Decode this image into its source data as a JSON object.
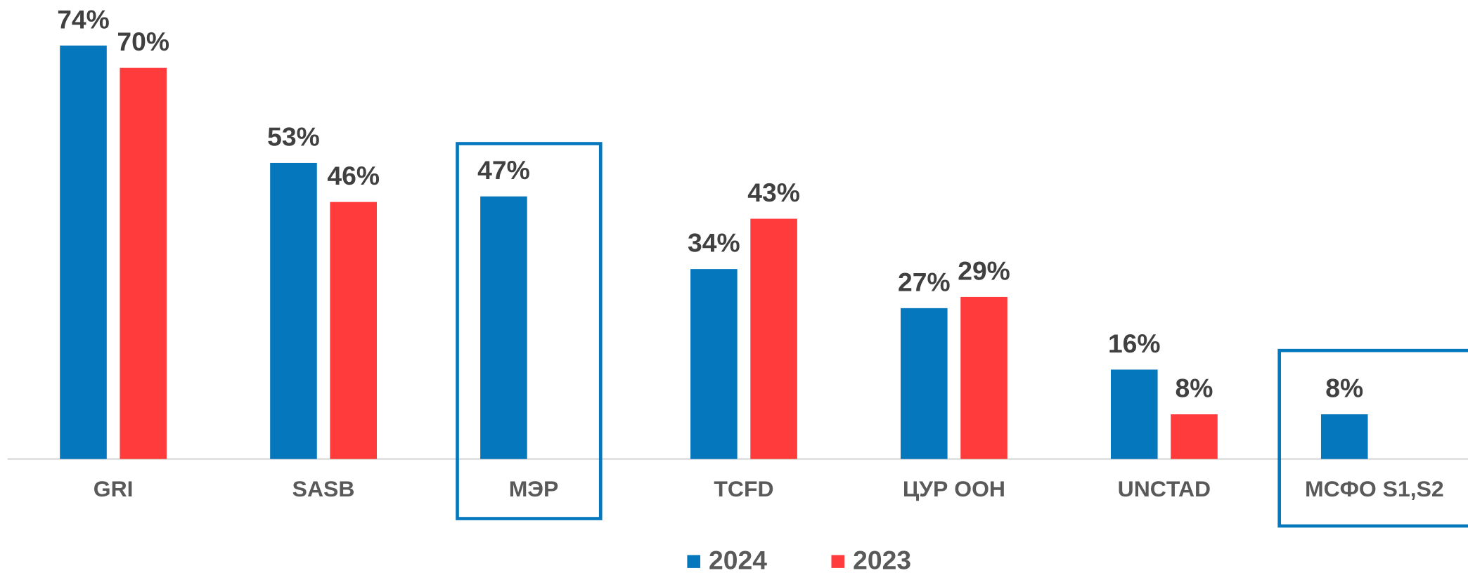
{
  "chart_data": {
    "type": "bar",
    "categories": [
      "GRI",
      "SASB",
      "МЭР",
      "TCFD",
      "ЦУР ООН",
      "UNCTAD",
      "МСФО S1,S2"
    ],
    "series": [
      {
        "name": "2024",
        "color": "#0577bd",
        "values": [
          74,
          53,
          47,
          34,
          27,
          16,
          8
        ],
        "value_labels": [
          "74%",
          "53%",
          "47%",
          "34%",
          "27%",
          "16%",
          "8%"
        ]
      },
      {
        "name": "2023",
        "color": "#ff3b3b",
        "values": [
          70,
          46,
          null,
          43,
          29,
          8,
          null
        ],
        "value_labels": [
          "70%",
          "46%",
          null,
          "43%",
          "29%",
          "8%",
          null
        ]
      }
    ]
  }
}
